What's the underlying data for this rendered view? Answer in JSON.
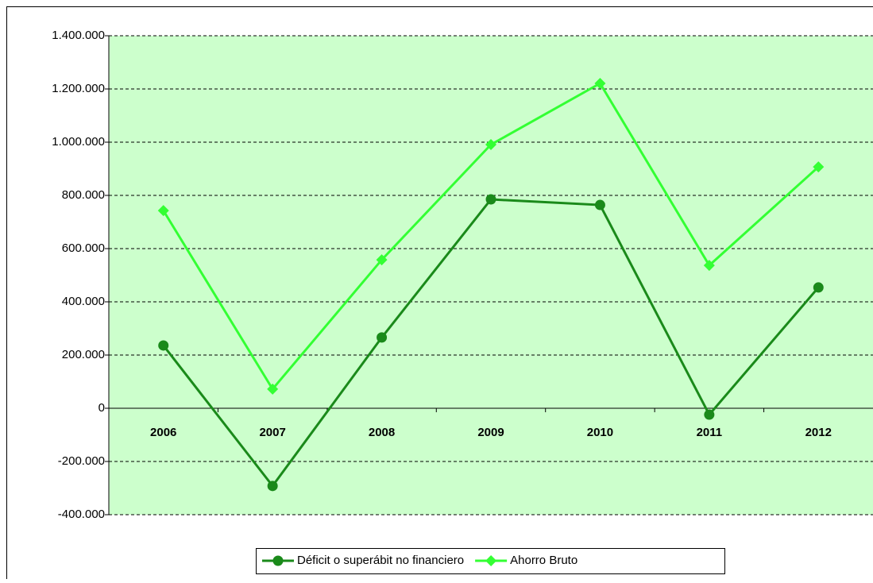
{
  "chart_data": {
    "type": "line",
    "categories": [
      "2006",
      "2007",
      "2008",
      "2009",
      "2010",
      "2011",
      "2012"
    ],
    "series": [
      {
        "name": "Déficit o superábit no financiero",
        "color": "#1a8a1a",
        "marker": "circle",
        "values": [
          236000,
          -292000,
          266000,
          785000,
          764000,
          -24000,
          454000
        ]
      },
      {
        "name": "Ahorro Bruto",
        "color": "#33ff33",
        "marker": "diamond",
        "values": [
          743000,
          72000,
          558000,
          991000,
          1221000,
          537000,
          907000
        ]
      }
    ],
    "ylim": [
      -400000,
      1400000
    ],
    "yticks": [
      {
        "value": -400000,
        "label": "-400.000"
      },
      {
        "value": -200000,
        "label": "-200.000"
      },
      0,
      {
        "value": 200000,
        "label": "200.000"
      },
      {
        "value": 400000,
        "label": "400.000"
      },
      {
        "value": 600000,
        "label": "600.000"
      },
      {
        "value": 800000,
        "label": "800.000"
      },
      {
        "value": 1000000,
        "label": "1.000.000"
      },
      {
        "value": 1200000,
        "label": "1.200.000"
      },
      {
        "value": 1400000,
        "label": "1.400.000"
      }
    ],
    "grid": true,
    "background": "#ccffcc",
    "legend": "bottom"
  }
}
